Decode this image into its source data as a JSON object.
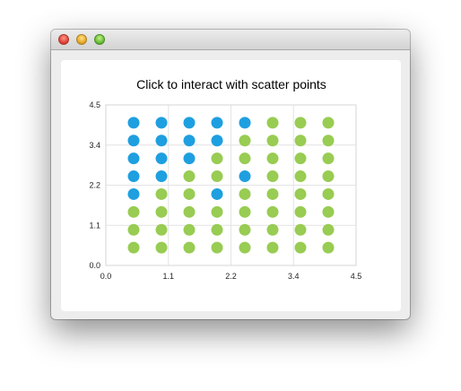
{
  "window": {
    "title": ""
  },
  "colors": {
    "series_blue": "#1e9fe0",
    "series_green": "#98cc52",
    "grid": "#e4e4e4",
    "axis": "#d6d6d6"
  },
  "chart_data": {
    "type": "scatter",
    "title": "Click to interact with scatter points",
    "xlabel": "",
    "ylabel": "",
    "xlim": [
      0,
      4.5
    ],
    "ylim": [
      0,
      4.5
    ],
    "xticks": [
      "0.0",
      "1.1",
      "2.2",
      "3.4",
      "4.5"
    ],
    "yticks": [
      "0.0",
      "1.1",
      "2.2",
      "3.4",
      "4.5"
    ],
    "grid": true,
    "legend": "none",
    "series": [
      {
        "color": "#1e9fe0",
        "points": [
          [
            0.5,
            4.0
          ],
          [
            1.0,
            4.0
          ],
          [
            1.5,
            4.0
          ],
          [
            2.0,
            4.0
          ],
          [
            2.5,
            4.0
          ],
          [
            0.5,
            3.5
          ],
          [
            1.0,
            3.5
          ],
          [
            1.5,
            3.5
          ],
          [
            2.0,
            3.5
          ],
          [
            0.5,
            3.0
          ],
          [
            1.0,
            3.0
          ],
          [
            1.5,
            3.0
          ],
          [
            0.5,
            2.5
          ],
          [
            1.0,
            2.5
          ],
          [
            2.5,
            2.5
          ],
          [
            0.5,
            2.0
          ],
          [
            2.0,
            2.0
          ]
        ]
      },
      {
        "color": "#98cc52",
        "points": [
          [
            3.0,
            4.0
          ],
          [
            3.5,
            4.0
          ],
          [
            4.0,
            4.0
          ],
          [
            2.5,
            3.5
          ],
          [
            3.0,
            3.5
          ],
          [
            3.5,
            3.5
          ],
          [
            4.0,
            3.5
          ],
          [
            2.0,
            3.0
          ],
          [
            2.5,
            3.0
          ],
          [
            3.0,
            3.0
          ],
          [
            3.5,
            3.0
          ],
          [
            4.0,
            3.0
          ],
          [
            1.5,
            2.5
          ],
          [
            2.0,
            2.5
          ],
          [
            3.0,
            2.5
          ],
          [
            3.5,
            2.5
          ],
          [
            4.0,
            2.5
          ],
          [
            1.0,
            2.0
          ],
          [
            1.5,
            2.0
          ],
          [
            2.5,
            2.0
          ],
          [
            3.0,
            2.0
          ],
          [
            3.5,
            2.0
          ],
          [
            4.0,
            2.0
          ],
          [
            0.5,
            1.5
          ],
          [
            1.0,
            1.5
          ],
          [
            1.5,
            1.5
          ],
          [
            2.0,
            1.5
          ],
          [
            2.5,
            1.5
          ],
          [
            3.0,
            1.5
          ],
          [
            3.5,
            1.5
          ],
          [
            4.0,
            1.5
          ],
          [
            0.5,
            1.0
          ],
          [
            1.0,
            1.0
          ],
          [
            1.5,
            1.0
          ],
          [
            2.0,
            1.0
          ],
          [
            2.5,
            1.0
          ],
          [
            3.0,
            1.0
          ],
          [
            3.5,
            1.0
          ],
          [
            4.0,
            1.0
          ],
          [
            0.5,
            0.5
          ],
          [
            1.0,
            0.5
          ],
          [
            1.5,
            0.5
          ],
          [
            2.0,
            0.5
          ],
          [
            2.5,
            0.5
          ],
          [
            3.0,
            0.5
          ],
          [
            3.5,
            0.5
          ],
          [
            4.0,
            0.5
          ]
        ]
      }
    ]
  }
}
